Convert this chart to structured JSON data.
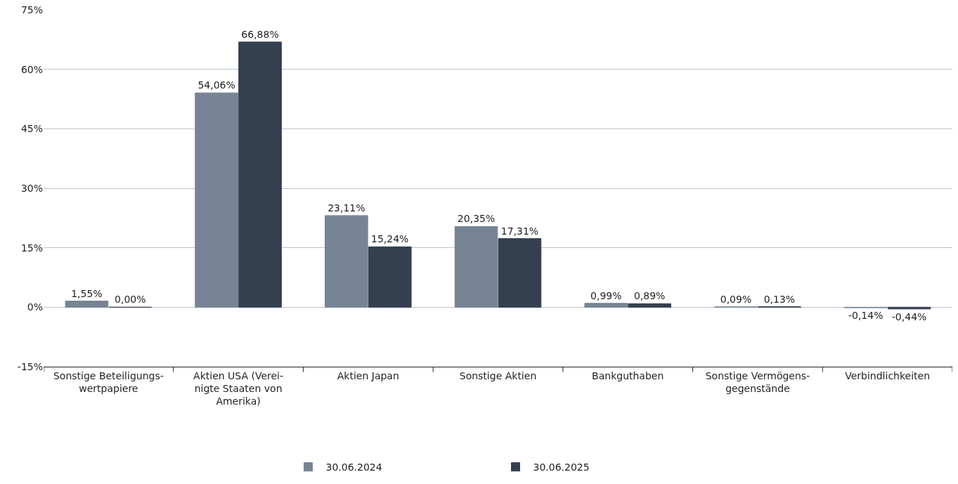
{
  "chart_data": {
    "type": "bar",
    "categories": [
      "Sonstige Beteiligungs-\nwertpapiere",
      "Aktien USA (Verei-\nnigte Staaten von\nAmerika)",
      "Aktien Japan",
      "Sonstige Aktien",
      "Bankguthaben",
      "Sonstige Vermögens-\ngegenstände",
      "Verbindlichkeiten"
    ],
    "series": [
      {
        "name": "30.06.2024",
        "color": "#778495",
        "values": [
          1.55,
          54.06,
          23.11,
          20.35,
          0.99,
          0.09,
          -0.14
        ],
        "value_labels": [
          "1,55%",
          "54,06%",
          "23,11%",
          "20,35%",
          "0,99%",
          "0,09%",
          "-0,14%"
        ]
      },
      {
        "name": "30.06.2025",
        "color": "#343f50",
        "values": [
          0.0,
          66.88,
          15.24,
          17.31,
          0.89,
          0.13,
          -0.44
        ],
        "value_labels": [
          "0,00%",
          "66,88%",
          "15,24%",
          "17,31%",
          "0,89%",
          "0,13%",
          "-0,44%"
        ]
      }
    ],
    "ylim": [
      -15,
      75
    ],
    "yticks": [
      {
        "value": -15,
        "label": "-15%"
      },
      {
        "value": 0,
        "label": "0%"
      },
      {
        "value": 15,
        "label": "15%"
      },
      {
        "value": 30,
        "label": "30%"
      },
      {
        "value": 45,
        "label": "45%"
      },
      {
        "value": 60,
        "label": "60%"
      },
      {
        "value": 75,
        "label": "75%"
      }
    ],
    "grid": "y",
    "legend": "bottom"
  }
}
